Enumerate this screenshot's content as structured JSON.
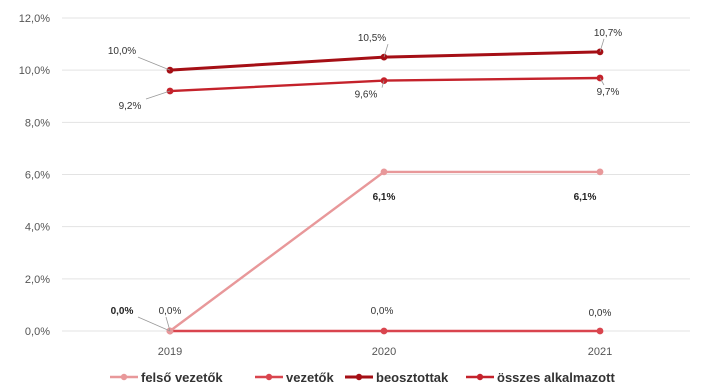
{
  "chart_data": {
    "type": "line",
    "title": "",
    "xlabel": "",
    "ylabel": "",
    "x": [
      "2019",
      "2020",
      "2021"
    ],
    "ylim": [
      0,
      12
    ],
    "yticks": [
      "0,0%",
      "2,0%",
      "4,0%",
      "6,0%",
      "8,0%",
      "10,0%",
      "12,0%"
    ],
    "grid": true,
    "legend_position": "bottom",
    "series": [
      {
        "name": "felső vezetők",
        "values": [
          0.0,
          6.1,
          6.1
        ],
        "labels": [
          "0,0%",
          "6,1%",
          "6,1%"
        ],
        "color": "#e8989a"
      },
      {
        "name": "vezetők",
        "values": [
          0.0,
          0.0,
          0.0
        ],
        "labels": [
          "0,0%",
          "0,0%",
          "0,0%"
        ],
        "color": "#d9454e"
      },
      {
        "name": "beosztottak",
        "values": [
          10.0,
          10.5,
          10.7
        ],
        "labels": [
          "10,0%",
          "10,5%",
          "10,7%"
        ],
        "color": "#a50f15"
      },
      {
        "name": "összes alkalmazott",
        "values": [
          9.2,
          9.6,
          9.7
        ],
        "labels": [
          "9,2%",
          "9,6%",
          "9,7%"
        ],
        "color": "#c4222b"
      }
    ]
  }
}
